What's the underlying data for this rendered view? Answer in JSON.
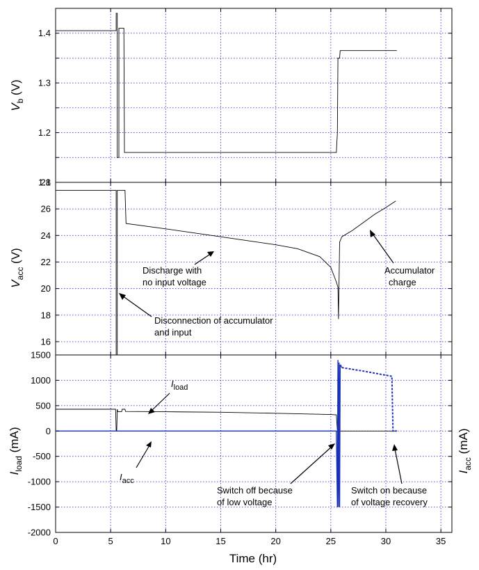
{
  "x_axis": {
    "label": "Time (hr)"
  },
  "chart_data": [
    {
      "type": "line",
      "ylabel": "Vb (V)",
      "ylabel_main": "V",
      "ylabel_sub": "b",
      "ylabel_unit": " (V)",
      "xlim": [
        0,
        36
      ],
      "ylim": [
        1.1,
        1.45
      ],
      "x_ticks": [
        0,
        5,
        10,
        15,
        20,
        25,
        30,
        35
      ],
      "y_ticks": [
        1.1,
        1.15,
        1.2,
        1.25,
        1.3,
        1.35,
        1.4
      ],
      "y_tick_labels": [
        "1.1",
        "",
        "1.2",
        "",
        "1.3",
        "",
        "1.4"
      ],
      "grid": true,
      "series": [
        {
          "x": [
            0,
            5.5,
            5.5,
            5.6,
            5.6,
            5.75,
            5.75,
            6.2,
            6.25,
            6.3,
            25.5,
            25.6,
            25.65,
            25.8,
            25.85,
            31
          ],
          "y": [
            1.405,
            1.405,
            1.44,
            1.44,
            1.15,
            1.15,
            1.41,
            1.41,
            1.16,
            1.16,
            1.16,
            1.2,
            1.35,
            1.35,
            1.365,
            1.365
          ]
        }
      ]
    },
    {
      "type": "line",
      "ylabel": "Vacc (V)",
      "ylabel_main": "V",
      "ylabel_sub": "acc",
      "ylabel_unit": " (V)",
      "xlim": [
        0,
        36
      ],
      "ylim": [
        15,
        28
      ],
      "x_ticks": [
        0,
        5,
        10,
        15,
        20,
        25,
        30,
        35
      ],
      "y_ticks": [
        16,
        18,
        20,
        22,
        24,
        26,
        28
      ],
      "y_tick_labels": [
        "16",
        "18",
        "20",
        "22",
        "24",
        "26",
        "28"
      ],
      "grid": true,
      "series": [
        {
          "x": [
            0,
            5.4,
            5.5,
            5.5,
            5.6,
            5.6,
            6.3,
            6.4,
            10,
            15,
            20,
            22,
            24,
            25,
            25.5,
            25.65,
            25.7,
            25.8,
            25.9,
            26.0,
            27,
            28,
            29,
            30,
            30.9
          ],
          "y": [
            27.4,
            27.4,
            27.4,
            15.0,
            15.0,
            27.4,
            27.4,
            24.9,
            24.5,
            23.9,
            23.3,
            23.0,
            22.4,
            21.6,
            20.5,
            20.1,
            17.7,
            23.5,
            23.7,
            23.9,
            24.4,
            25.0,
            25.6,
            26.1,
            26.6
          ]
        }
      ],
      "annotations": [
        {
          "lines": [
            "Discharge with",
            "no input voltage"
          ]
        },
        {
          "lines": [
            "Disconnection of accumulator",
            "and input"
          ]
        },
        {
          "lines": [
            "Accumulator",
            "charge"
          ]
        }
      ]
    },
    {
      "type": "line",
      "ylabel": "Iload (mA)",
      "ylabel_main": "I",
      "ylabel_sub": "load",
      "ylabel_unit": " (mA)",
      "ylabel_right": "Iacc (mA)",
      "ylabel_right_main": "I",
      "ylabel_right_sub": "acc",
      "ylabel_right_unit": " (mA)",
      "xlim": [
        0,
        36
      ],
      "ylim": [
        -2000,
        1500
      ],
      "x_ticks": [
        0,
        5,
        10,
        15,
        20,
        25,
        30,
        35
      ],
      "x_tick_labels": [
        "0",
        "5",
        "10",
        "15",
        "20",
        "25",
        "30",
        "35"
      ],
      "y_ticks": [
        -2000,
        -1500,
        -1000,
        -500,
        0,
        500,
        1000,
        1500
      ],
      "y_tick_labels": [
        "-2000",
        "-1500",
        "-1000",
        "-500",
        "0",
        "500",
        "1000",
        "1500"
      ],
      "grid": true,
      "series": [
        {
          "style": "black",
          "x": [
            0,
            5.45,
            5.5,
            5.55,
            5.6,
            5.65,
            6.0,
            6.05,
            6.3,
            6.35,
            10,
            15,
            20,
            25,
            25.5,
            25.6,
            25.7,
            31
          ],
          "y": [
            430,
            430,
            10,
            10,
            430,
            380,
            380,
            430,
            430,
            385,
            380,
            370,
            350,
            325,
            320,
            0,
            0,
            0
          ]
        },
        {
          "style": "blue",
          "x": [
            0,
            25.5,
            25.6,
            25.65,
            25.7,
            25.75,
            25.8,
            25.85,
            25.9,
            26.0
          ],
          "y": [
            0,
            0,
            -1500,
            1400,
            -1500,
            1350,
            -1500,
            1300,
            1300,
            1250
          ]
        },
        {
          "style": "blue-dash",
          "x": [
            26.0,
            28,
            30,
            30.55,
            30.65,
            30.75,
            31
          ],
          "y": [
            1250,
            1180,
            1100,
            1080,
            0,
            0,
            0
          ]
        }
      ],
      "annotations": [
        {
          "main": "I",
          "sub": "load"
        },
        {
          "main": "I",
          "sub": "acc"
        },
        {
          "lines": [
            "Switch off because",
            "of low voltage"
          ]
        },
        {
          "lines": [
            "Switch on because",
            "of voltage recovery"
          ]
        }
      ]
    }
  ]
}
